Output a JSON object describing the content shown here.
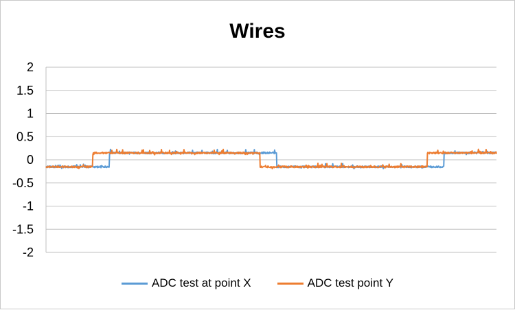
{
  "chart_data": {
    "type": "line",
    "title": "Wires",
    "xlabel": "",
    "ylabel": "",
    "ylim": [
      -2,
      2
    ],
    "yticks": [
      "2",
      "1.5",
      "1",
      "0.5",
      "0",
      "-0.5",
      "-1",
      "-1.5",
      "-2"
    ],
    "grid": true,
    "legend_position": "bottom",
    "n_points": 1000,
    "series": [
      {
        "name": "ADC test at point X",
        "color": "#5b9bd5",
        "segments": [
          {
            "x_start": 0,
            "x_end": 140,
            "level": -0.15
          },
          {
            "x_start": 141,
            "x_end": 511,
            "level": 0.15
          },
          {
            "x_start": 512,
            "x_end": 882,
            "level": -0.15
          },
          {
            "x_start": 883,
            "x_end": 999,
            "level": 0.15
          }
        ]
      },
      {
        "name": "ADC test point Y",
        "color": "#ed7d31",
        "segments": [
          {
            "x_start": 0,
            "x_end": 103,
            "level": -0.15
          },
          {
            "x_start": 104,
            "x_end": 474,
            "level": 0.15
          },
          {
            "x_start": 475,
            "x_end": 845,
            "level": -0.15
          },
          {
            "x_start": 846,
            "x_end": 999,
            "level": 0.15
          }
        ]
      }
    ]
  }
}
